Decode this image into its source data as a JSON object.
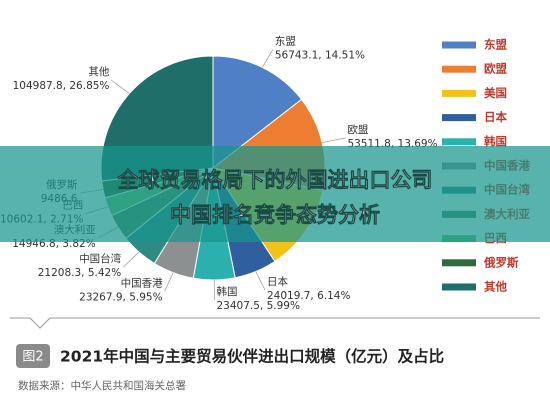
{
  "chart_data": {
    "type": "pie",
    "title": "2021年中国与主要贸易伙伴进出口规模（亿元）及占比",
    "badge": "图2",
    "source": "数据来源：中华人民共和国海关总署",
    "categories": [
      "东盟",
      "欧盟",
      "美国",
      "日本",
      "韩国",
      "中国香港",
      "中国台湾",
      "澳大利亚",
      "巴西",
      "俄罗斯",
      "其他"
    ],
    "values": [
      56743.1,
      53511.8,
      48840,
      24019.7,
      23407.5,
      23267.9,
      21208.3,
      14946.8,
      10602.1,
      9486.6,
      104987.8
    ],
    "value_labels": [
      "56743.1, 14.51%",
      "53511.8, 13.69%",
      null,
      "24019.7, 6.14%",
      "23407.5, 5.99%",
      "23267.9, 5.95%",
      "21208.3, 5.42%",
      "14946.8, 3.82%",
      "10602.1, 2.71%",
      "9486.6",
      "104987.8, 26.85%"
    ],
    "colors": [
      "#4f7fc4",
      "#ed7d31",
      "#f2c21a",
      "#2f5f9e",
      "#2bb0ad",
      "#8c9090",
      "#2f8a86",
      "#4d8b60",
      "#6cbf6c",
      "#2f6a3c",
      "#1f6e6a"
    ],
    "legend": "right"
  },
  "overlay": {
    "lines": [
      "全球贸易格局下的外国进出口公司",
      "中国排名竞争态势分析"
    ]
  }
}
